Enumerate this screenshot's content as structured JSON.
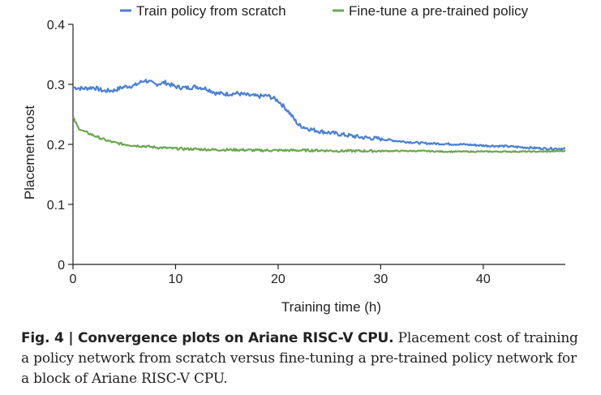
{
  "chart_data": {
    "type": "line",
    "xlabel": "Training time (h)",
    "ylabel": "Placement cost",
    "xlim": [
      0,
      48
    ],
    "ylim": [
      0,
      0.4
    ],
    "xticks": [
      0,
      10,
      20,
      30,
      40
    ],
    "yticks": [
      0,
      0.1,
      0.2,
      0.3,
      0.4
    ],
    "ytick_labels": [
      "0",
      "0.1",
      "0.2",
      "0.3",
      "0.4"
    ],
    "xtick_labels": [
      "0",
      "10",
      "20",
      "30",
      "40"
    ],
    "legend_position": "top",
    "series": [
      {
        "name": "Train policy from scratch",
        "color": "#4a7fd6",
        "x": [
          0,
          1,
          2,
          3,
          4,
          5,
          6,
          7,
          8,
          9,
          10,
          11,
          12,
          13,
          14,
          15,
          16,
          17,
          18,
          19,
          20,
          21,
          22,
          23,
          24,
          26,
          28,
          30,
          32,
          34,
          36,
          38,
          40,
          42,
          44,
          46,
          48
        ],
        "y": [
          0.295,
          0.293,
          0.295,
          0.289,
          0.29,
          0.296,
          0.298,
          0.307,
          0.3,
          0.303,
          0.296,
          0.294,
          0.296,
          0.293,
          0.285,
          0.284,
          0.285,
          0.282,
          0.28,
          0.281,
          0.273,
          0.255,
          0.232,
          0.226,
          0.222,
          0.217,
          0.212,
          0.209,
          0.205,
          0.202,
          0.201,
          0.2,
          0.198,
          0.197,
          0.195,
          0.193,
          0.193
        ]
      },
      {
        "name": "Fine-tune a pre-trained policy",
        "color": "#6aa84f",
        "x": [
          0,
          0.5,
          1,
          2,
          3,
          4,
          5,
          6,
          7,
          8,
          10,
          12,
          14,
          16,
          18,
          20,
          22,
          24,
          26,
          28,
          30,
          32,
          34,
          36,
          38,
          40,
          42,
          44,
          46,
          48
        ],
        "y": [
          0.245,
          0.228,
          0.222,
          0.215,
          0.208,
          0.203,
          0.2,
          0.198,
          0.197,
          0.195,
          0.193,
          0.192,
          0.191,
          0.191,
          0.19,
          0.19,
          0.19,
          0.19,
          0.189,
          0.189,
          0.189,
          0.189,
          0.189,
          0.188,
          0.188,
          0.188,
          0.188,
          0.188,
          0.188,
          0.189
        ]
      }
    ]
  },
  "caption": {
    "label": "Fig. 4 | Convergence plots on Ariane RISC-V CPU.",
    "text": " Placement cost of training a policy network from scratch versus fine-tuning a pre-trained policy network for a block of Ariane RISC-V CPU."
  }
}
